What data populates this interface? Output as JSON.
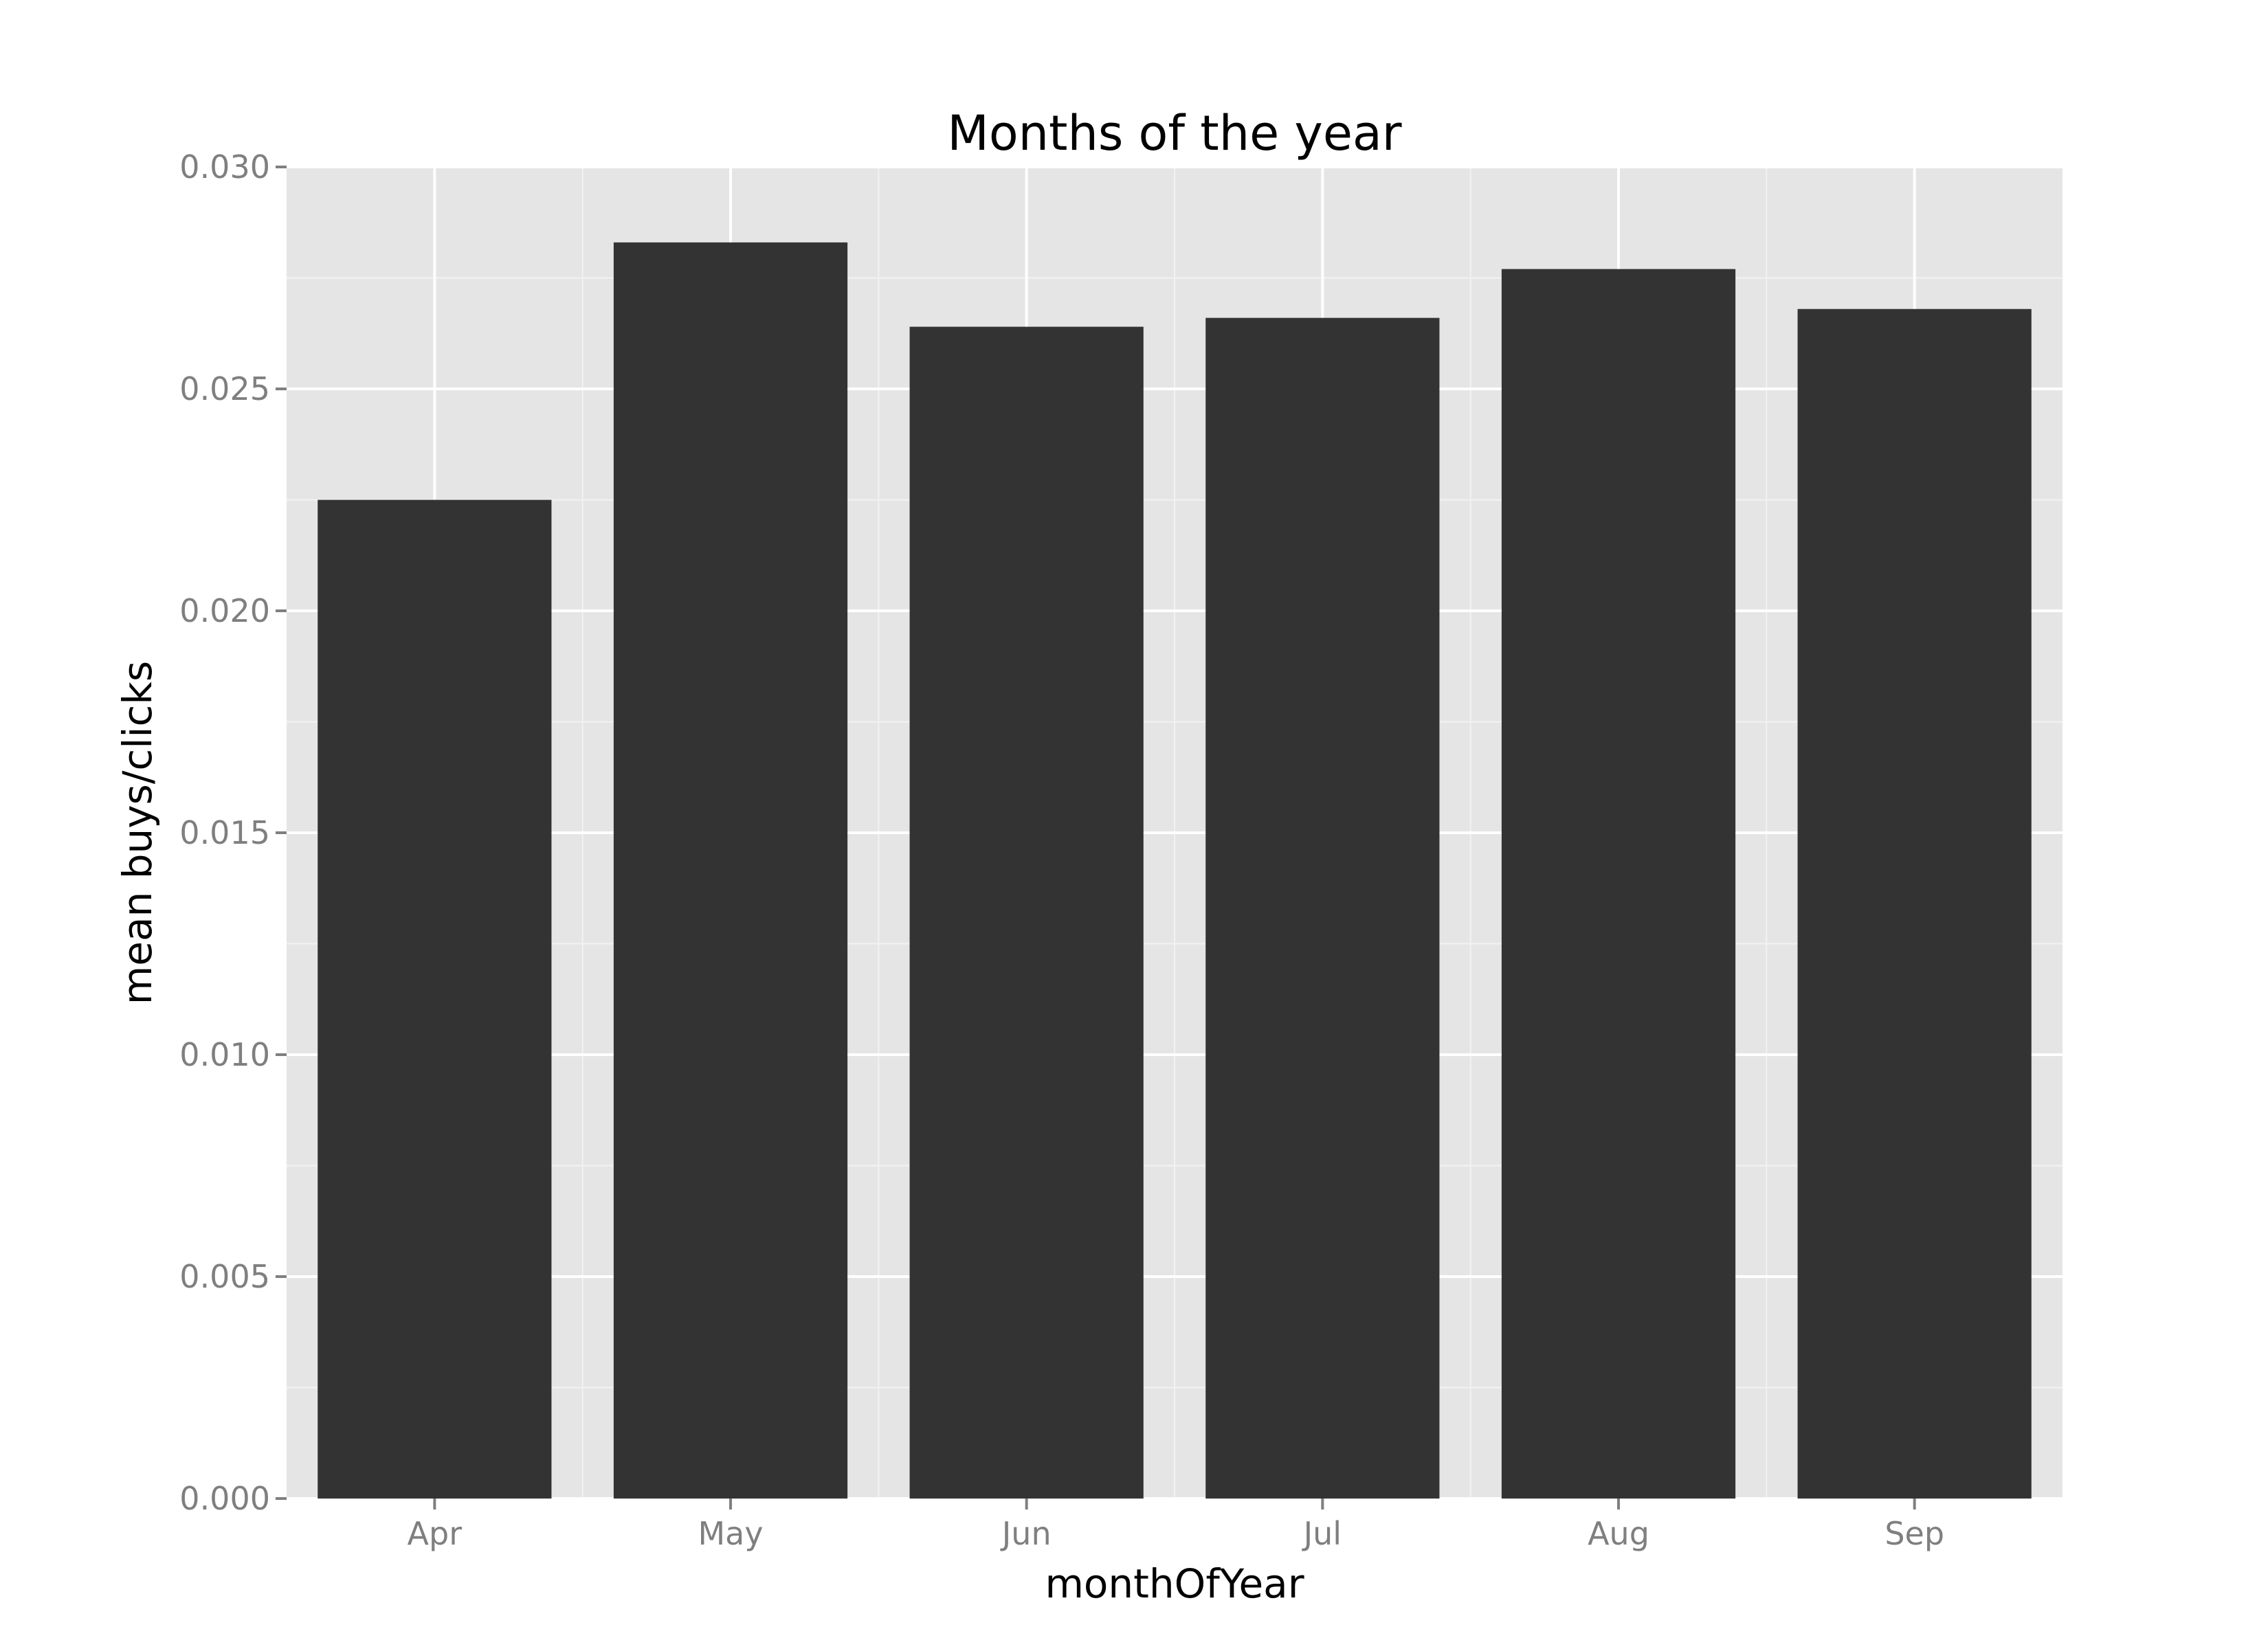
{
  "chart_data": {
    "type": "bar",
    "title": "Months of the year",
    "xlabel": "monthOfYear",
    "ylabel": "mean buys/clicks",
    "categories": [
      "Apr",
      "May",
      "Jun",
      "Jul",
      "Aug",
      "Sep"
    ],
    "values": [
      0.0225,
      0.0283,
      0.0264,
      0.0266,
      0.0277,
      0.0268
    ],
    "ylim": [
      0,
      0.03
    ],
    "yticks": [
      0.0,
      0.005,
      0.01,
      0.015,
      0.02,
      0.025,
      0.03
    ],
    "ytick_labels": [
      "0.000",
      "0.005",
      "0.010",
      "0.015",
      "0.020",
      "0.025",
      "0.030"
    ],
    "grid": true,
    "legend": "none",
    "colors": {
      "panel_background": "#e5e5e5",
      "grid_major": "#ffffff",
      "grid_minor": "#f2f2f2",
      "bar_fill": "#333333",
      "tick_text": "#7f7f7f",
      "tick_mark": "#7f7f7f",
      "label_text": "#000000"
    }
  }
}
